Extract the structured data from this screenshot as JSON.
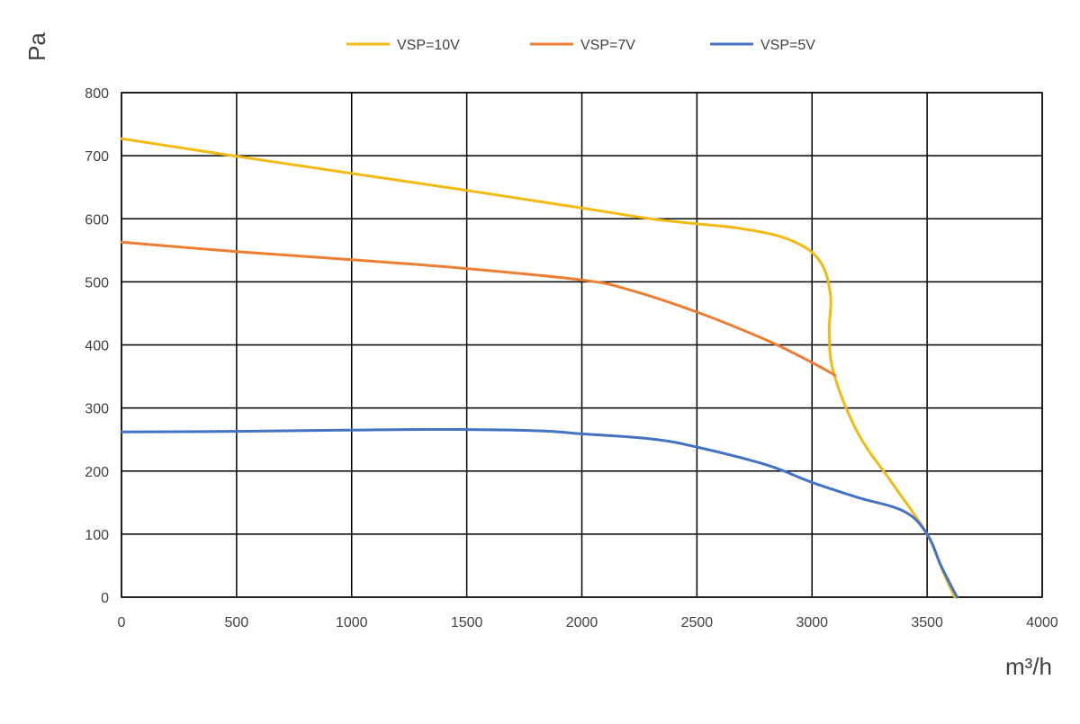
{
  "chart_data": {
    "type": "line",
    "xlabel": "m³/h",
    "ylabel": "Pa",
    "xlim": [
      0,
      4000
    ],
    "ylim": [
      0,
      800
    ],
    "x_ticks": [
      0,
      500,
      1000,
      1500,
      2000,
      2500,
      3000,
      3500,
      4000
    ],
    "y_ticks": [
      0,
      100,
      200,
      300,
      400,
      500,
      600,
      700,
      800
    ],
    "grid": true,
    "legend_position": "top-center",
    "series": [
      {
        "name": "VSP=10V",
        "color": "#F2B90F",
        "points": [
          [
            0,
            727
          ],
          [
            500,
            699
          ],
          [
            1000,
            672
          ],
          [
            1500,
            645
          ],
          [
            2000,
            617
          ],
          [
            2300,
            600
          ],
          [
            2500,
            592
          ],
          [
            2700,
            584
          ],
          [
            2900,
            567
          ],
          [
            3030,
            535
          ],
          [
            3080,
            480
          ],
          [
            3075,
            420
          ],
          [
            3095,
            355
          ],
          [
            3200,
            260
          ],
          [
            3350,
            180
          ],
          [
            3500,
            100
          ],
          [
            3570,
            40
          ],
          [
            3620,
            0
          ]
        ]
      },
      {
        "name": "VSP=7V",
        "color": "#ED7D31",
        "points": [
          [
            0,
            563
          ],
          [
            500,
            548
          ],
          [
            1000,
            535
          ],
          [
            1500,
            521
          ],
          [
            2000,
            503
          ],
          [
            2200,
            488
          ],
          [
            2500,
            452
          ],
          [
            2800,
            408
          ],
          [
            3000,
            372
          ],
          [
            3100,
            352
          ]
        ]
      },
      {
        "name": "VSP=5V",
        "color": "#4472C4",
        "points": [
          [
            0,
            262
          ],
          [
            500,
            263
          ],
          [
            1000,
            265
          ],
          [
            1400,
            266
          ],
          [
            1800,
            264
          ],
          [
            2000,
            259
          ],
          [
            2300,
            251
          ],
          [
            2500,
            238
          ],
          [
            2800,
            210
          ],
          [
            3000,
            182
          ],
          [
            3200,
            158
          ],
          [
            3400,
            136
          ],
          [
            3500,
            100
          ],
          [
            3560,
            50
          ],
          [
            3630,
            0
          ]
        ]
      }
    ]
  }
}
